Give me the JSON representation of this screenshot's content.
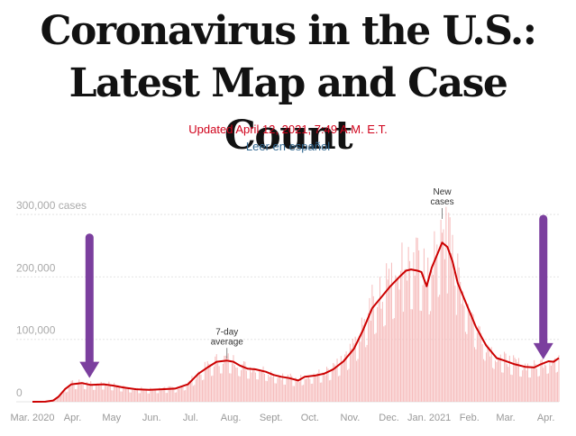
{
  "header": {
    "title_line1": "Coronavirus in the U.S.:",
    "title_line2": "Latest Map and Case Count",
    "updated": "Updated April 12, 2021, 7:49 A.M. E.T.",
    "spanish_link": "Leer en español"
  },
  "colors": {
    "line": "#cc0000",
    "bars": "#f6bcbc",
    "arrow": "#7b3f9e",
    "grid": "#e4e4e4"
  },
  "chart_data": {
    "type": "bar",
    "title": "",
    "series": [
      {
        "name": "New cases",
        "kind": "bar"
      },
      {
        "name": "7-day average",
        "kind": "line"
      }
    ],
    "ylim": [
      0,
      320000
    ],
    "y_ticks": [
      {
        "value": 0,
        "label": "0"
      },
      {
        "value": 100000,
        "label": "100,000"
      },
      {
        "value": 200000,
        "label": "200,000"
      },
      {
        "value": 300000,
        "label": "300,000 cases"
      }
    ],
    "x_range_days": [
      0,
      406
    ],
    "x_ticks": [
      {
        "day": 0,
        "label": "Mar. 2020"
      },
      {
        "day": 31,
        "label": "Apr."
      },
      {
        "day": 61,
        "label": "May"
      },
      {
        "day": 92,
        "label": "Jun."
      },
      {
        "day": 122,
        "label": "Jul."
      },
      {
        "day": 153,
        "label": "Aug."
      },
      {
        "day": 184,
        "label": "Sept."
      },
      {
        "day": 214,
        "label": "Oct."
      },
      {
        "day": 245,
        "label": "Nov."
      },
      {
        "day": 275,
        "label": "Dec."
      },
      {
        "day": 306,
        "label": "Jan. 2021"
      },
      {
        "day": 337,
        "label": "Feb."
      },
      {
        "day": 365,
        "label": "Mar."
      },
      {
        "day": 396,
        "label": "Apr."
      }
    ],
    "average_points": [
      [
        0,
        0
      ],
      [
        10,
        100
      ],
      [
        16,
        2000
      ],
      [
        20,
        8000
      ],
      [
        25,
        20000
      ],
      [
        30,
        28000
      ],
      [
        38,
        30000
      ],
      [
        45,
        27000
      ],
      [
        55,
        28000
      ],
      [
        62,
        26000
      ],
      [
        70,
        23000
      ],
      [
        80,
        20000
      ],
      [
        90,
        19000
      ],
      [
        100,
        20000
      ],
      [
        110,
        21000
      ],
      [
        120,
        28000
      ],
      [
        128,
        45000
      ],
      [
        135,
        55000
      ],
      [
        142,
        64000
      ],
      [
        150,
        66000
      ],
      [
        155,
        64000
      ],
      [
        160,
        58000
      ],
      [
        166,
        53000
      ],
      [
        172,
        52000
      ],
      [
        180,
        48000
      ],
      [
        186,
        43000
      ],
      [
        192,
        40000
      ],
      [
        198,
        38000
      ],
      [
        205,
        34000
      ],
      [
        210,
        40000
      ],
      [
        218,
        42000
      ],
      [
        225,
        45000
      ],
      [
        232,
        52000
      ],
      [
        240,
        65000
      ],
      [
        248,
        85000
      ],
      [
        255,
        115000
      ],
      [
        262,
        150000
      ],
      [
        270,
        170000
      ],
      [
        276,
        185000
      ],
      [
        283,
        200000
      ],
      [
        288,
        210000
      ],
      [
        292,
        212000
      ],
      [
        297,
        210000
      ],
      [
        300,
        208000
      ],
      [
        304,
        185000
      ],
      [
        308,
        215000
      ],
      [
        312,
        235000
      ],
      [
        316,
        255000
      ],
      [
        320,
        248000
      ],
      [
        324,
        225000
      ],
      [
        328,
        190000
      ],
      [
        335,
        155000
      ],
      [
        342,
        120000
      ],
      [
        350,
        90000
      ],
      [
        358,
        70000
      ],
      [
        364,
        66000
      ],
      [
        372,
        60000
      ],
      [
        380,
        56000
      ],
      [
        387,
        55000
      ],
      [
        392,
        60000
      ],
      [
        398,
        65000
      ],
      [
        402,
        64000
      ],
      [
        406,
        70000
      ]
    ],
    "annotations": [
      {
        "text_lines": [
          "7-day",
          "average"
        ],
        "day": 150,
        "value": 66000
      },
      {
        "text_lines": [
          "New",
          "cases"
        ],
        "day": 316,
        "value": 290000
      }
    ],
    "overlay_arrows": [
      {
        "label": "purple-arrow-left",
        "day": 44,
        "from_value": 263000,
        "to_value": 38000
      },
      {
        "label": "purple-arrow-right",
        "day": 394,
        "from_value": 293000,
        "to_value": 68000
      }
    ]
  }
}
